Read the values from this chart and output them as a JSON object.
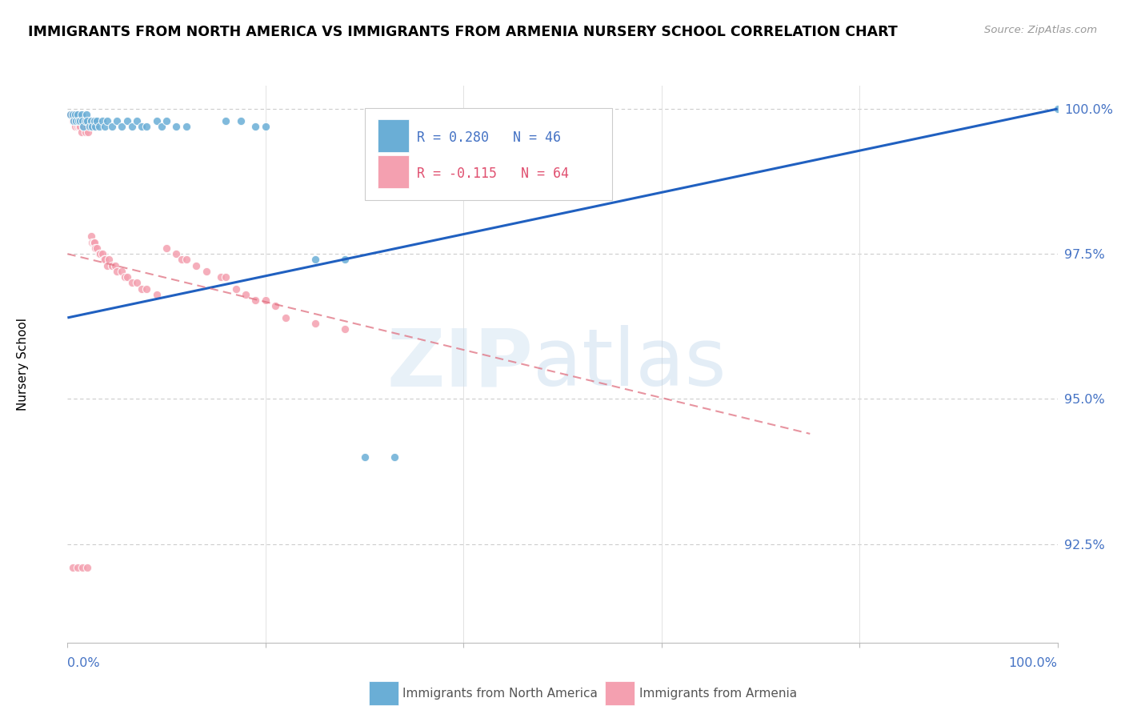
{
  "title": "IMMIGRANTS FROM NORTH AMERICA VS IMMIGRANTS FROM ARMENIA NURSERY SCHOOL CORRELATION CHART",
  "source": "Source: ZipAtlas.com",
  "ylabel": "Nursery School",
  "ytick_labels": [
    "100.0%",
    "97.5%",
    "95.0%",
    "92.5%"
  ],
  "ytick_values": [
    1.0,
    0.975,
    0.95,
    0.925
  ],
  "legend_blue_label": "Immigrants from North America",
  "legend_pink_label": "Immigrants from Armenia",
  "legend_R_blue": "R = 0.280",
  "legend_N_blue": "N = 46",
  "legend_R_pink": "R = -0.115",
  "legend_N_pink": "N = 64",
  "blue_color": "#6aaed6",
  "pink_color": "#f4a0b0",
  "blue_line_color": "#2060c0",
  "pink_line_color": "#e07080",
  "watermark_zip": "ZIP",
  "watermark_atlas": "atlas",
  "blue_dots": [
    [
      0.003,
      0.999
    ],
    [
      0.005,
      0.999
    ],
    [
      0.006,
      0.998
    ],
    [
      0.008,
      0.999
    ],
    [
      0.009,
      0.998
    ],
    [
      0.01,
      0.999
    ],
    [
      0.011,
      0.998
    ],
    [
      0.013,
      0.998
    ],
    [
      0.014,
      0.999
    ],
    [
      0.015,
      0.998
    ],
    [
      0.016,
      0.997
    ],
    [
      0.018,
      0.998
    ],
    [
      0.019,
      0.999
    ],
    [
      0.02,
      0.998
    ],
    [
      0.022,
      0.997
    ],
    [
      0.024,
      0.998
    ],
    [
      0.025,
      0.997
    ],
    [
      0.027,
      0.998
    ],
    [
      0.028,
      0.997
    ],
    [
      0.03,
      0.998
    ],
    [
      0.032,
      0.997
    ],
    [
      0.035,
      0.998
    ],
    [
      0.038,
      0.997
    ],
    [
      0.04,
      0.998
    ],
    [
      0.045,
      0.997
    ],
    [
      0.05,
      0.998
    ],
    [
      0.055,
      0.997
    ],
    [
      0.06,
      0.998
    ],
    [
      0.065,
      0.997
    ],
    [
      0.07,
      0.998
    ],
    [
      0.075,
      0.997
    ],
    [
      0.08,
      0.997
    ],
    [
      0.09,
      0.998
    ],
    [
      0.095,
      0.997
    ],
    [
      0.1,
      0.998
    ],
    [
      0.11,
      0.997
    ],
    [
      0.12,
      0.997
    ],
    [
      0.16,
      0.998
    ],
    [
      0.175,
      0.998
    ],
    [
      0.19,
      0.997
    ],
    [
      0.2,
      0.997
    ],
    [
      0.25,
      0.974
    ],
    [
      0.28,
      0.974
    ],
    [
      0.3,
      0.94
    ],
    [
      0.33,
      0.94
    ],
    [
      1.0,
      1.0
    ]
  ],
  "pink_dots": [
    [
      0.003,
      0.999
    ],
    [
      0.005,
      0.998
    ],
    [
      0.006,
      0.999
    ],
    [
      0.007,
      0.998
    ],
    [
      0.008,
      0.997
    ],
    [
      0.009,
      0.998
    ],
    [
      0.01,
      0.997
    ],
    [
      0.011,
      0.998
    ],
    [
      0.012,
      0.997
    ],
    [
      0.013,
      0.997
    ],
    [
      0.014,
      0.996
    ],
    [
      0.015,
      0.998
    ],
    [
      0.016,
      0.997
    ],
    [
      0.017,
      0.997
    ],
    [
      0.018,
      0.996
    ],
    [
      0.019,
      0.997
    ],
    [
      0.02,
      0.997
    ],
    [
      0.021,
      0.996
    ],
    [
      0.022,
      0.998
    ],
    [
      0.023,
      0.997
    ],
    [
      0.024,
      0.978
    ],
    [
      0.025,
      0.977
    ],
    [
      0.026,
      0.977
    ],
    [
      0.027,
      0.977
    ],
    [
      0.028,
      0.976
    ],
    [
      0.03,
      0.976
    ],
    [
      0.032,
      0.975
    ],
    [
      0.033,
      0.975
    ],
    [
      0.035,
      0.975
    ],
    [
      0.037,
      0.974
    ],
    [
      0.038,
      0.974
    ],
    [
      0.04,
      0.973
    ],
    [
      0.042,
      0.974
    ],
    [
      0.045,
      0.973
    ],
    [
      0.048,
      0.973
    ],
    [
      0.05,
      0.972
    ],
    [
      0.055,
      0.972
    ],
    [
      0.058,
      0.971
    ],
    [
      0.06,
      0.971
    ],
    [
      0.065,
      0.97
    ],
    [
      0.07,
      0.97
    ],
    [
      0.075,
      0.969
    ],
    [
      0.08,
      0.969
    ],
    [
      0.09,
      0.968
    ],
    [
      0.1,
      0.976
    ],
    [
      0.11,
      0.975
    ],
    [
      0.115,
      0.974
    ],
    [
      0.12,
      0.974
    ],
    [
      0.13,
      0.973
    ],
    [
      0.14,
      0.972
    ],
    [
      0.155,
      0.971
    ],
    [
      0.16,
      0.971
    ],
    [
      0.17,
      0.969
    ],
    [
      0.18,
      0.968
    ],
    [
      0.19,
      0.967
    ],
    [
      0.2,
      0.967
    ],
    [
      0.21,
      0.966
    ],
    [
      0.22,
      0.964
    ],
    [
      0.25,
      0.963
    ],
    [
      0.28,
      0.962
    ],
    [
      0.005,
      0.921
    ],
    [
      0.01,
      0.921
    ],
    [
      0.015,
      0.921
    ],
    [
      0.02,
      0.921
    ]
  ],
  "xlim": [
    0.0,
    1.0
  ],
  "ylim": [
    0.908,
    1.004
  ],
  "blue_line_x": [
    0.0,
    1.0
  ],
  "blue_line_y": [
    0.964,
    1.0
  ],
  "pink_line_x": [
    0.0,
    0.75
  ],
  "pink_line_y": [
    0.975,
    0.944
  ]
}
